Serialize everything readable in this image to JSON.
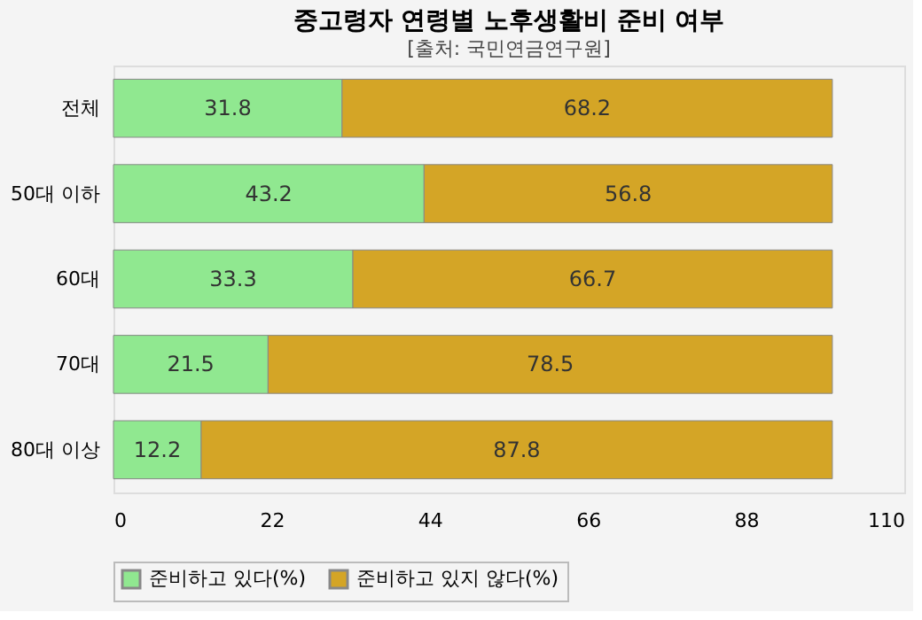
{
  "chart_data": {
    "type": "bar",
    "orientation": "horizontal",
    "stacked": true,
    "title": "중고령자 연령별 노후생활비 준비 여부",
    "subtitle": "[출처: 국민연금연구원]",
    "categories": [
      "전체",
      "50대 이하",
      "60대",
      "70대",
      "80대 이상"
    ],
    "series": [
      {
        "name": "준비하고 있다(%)",
        "color": "#90e890",
        "values": [
          31.8,
          43.2,
          33.3,
          21.5,
          12.2
        ]
      },
      {
        "name": "준비하고 있지 않다(%)",
        "color": "#d4a526",
        "values": [
          68.2,
          56.8,
          66.7,
          78.5,
          87.8
        ]
      }
    ],
    "xlim": [
      0,
      110
    ],
    "xticks": [
      0,
      22,
      44,
      66,
      88,
      110
    ],
    "data_labels": true,
    "legend": "bottom",
    "grid": false
  }
}
